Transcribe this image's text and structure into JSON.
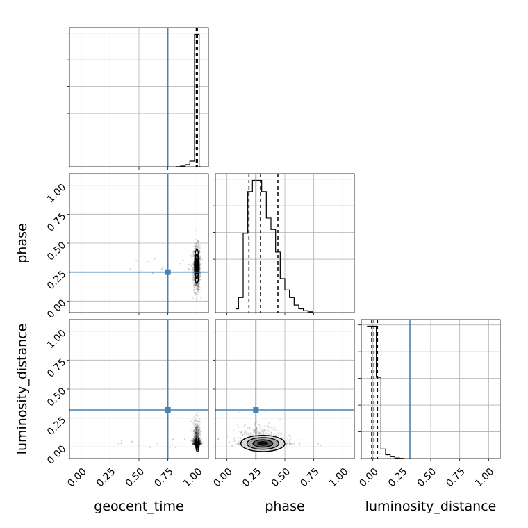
{
  "chart_data": {
    "type": "corner",
    "parameters": [
      "geocent_time",
      "phase",
      "luminosity_distance"
    ],
    "axis_range": [
      -0.1,
      1.1
    ],
    "ticks": [
      0.0,
      0.25,
      0.5,
      0.75,
      1.0
    ],
    "tick_labels": [
      "0.00",
      "0.25",
      "0.50",
      "0.75",
      "1.00"
    ],
    "grid": true,
    "truths": {
      "geocent_time": 0.75,
      "phase": 0.25,
      "luminosity_distance": 0.32
    },
    "colors": {
      "truth": "#4682b4",
      "samples": "#000000",
      "hist": "#000000",
      "grid": "#b0b0b0"
    },
    "histograms": [
      {
        "parameter": "geocent_time",
        "bin_edges": [
          0.82,
          0.86,
          0.9,
          0.94,
          0.98,
          1.02,
          1.04
        ],
        "counts": [
          0.1,
          0.5,
          1.5,
          4,
          95,
          0
        ],
        "quantiles": [
          0.995,
          1.0,
          1.005
        ]
      },
      {
        "parameter": "phase",
        "bin_edges": [
          0.08,
          0.1,
          0.14,
          0.18,
          0.22,
          0.26,
          0.3,
          0.34,
          0.38,
          0.42,
          0.46,
          0.5,
          0.54,
          0.58,
          0.62,
          0.66,
          0.7,
          0.74
        ],
        "counts": [
          1,
          4,
          21,
          32,
          35,
          35,
          32,
          25,
          22,
          16,
          9,
          6,
          4,
          2,
          1,
          0.5,
          0.2
        ],
        "quantiles": [
          0.19,
          0.29,
          0.44
        ]
      },
      {
        "parameter": "luminosity_distance",
        "bin_edges": [
          -0.05,
          -0.01,
          0.03,
          0.07,
          0.11,
          0.15,
          0.19,
          0.23,
          0.27
        ],
        "counts": [
          70,
          70,
          43,
          5,
          2,
          1,
          0.3,
          0.1
        ],
        "quantiles": [
          -0.01,
          0.01,
          0.04
        ]
      }
    ],
    "scatter_panels": [
      {
        "x": "geocent_time",
        "y": "phase",
        "center": [
          1.0,
          0.28
        ],
        "spread": [
          0.015,
          0.1
        ],
        "contour_extent": {
          "x": [
            0.98,
            1.02
          ],
          "y": [
            0.15,
            0.45
          ]
        }
      },
      {
        "x": "geocent_time",
        "y": "luminosity_distance",
        "center": [
          1.0,
          0.02
        ],
        "spread": [
          0.015,
          0.06
        ],
        "contour_extent": {
          "x": [
            0.99,
            1.02
          ],
          "y": [
            -0.04,
            0.08
          ]
        }
      },
      {
        "x": "phase",
        "y": "luminosity_distance",
        "center": [
          0.3,
          0.02
        ],
        "spread": [
          0.1,
          0.05
        ],
        "contour_extent": {
          "x": [
            0.12,
            0.5
          ],
          "y": [
            -0.04,
            0.1
          ]
        }
      }
    ]
  }
}
